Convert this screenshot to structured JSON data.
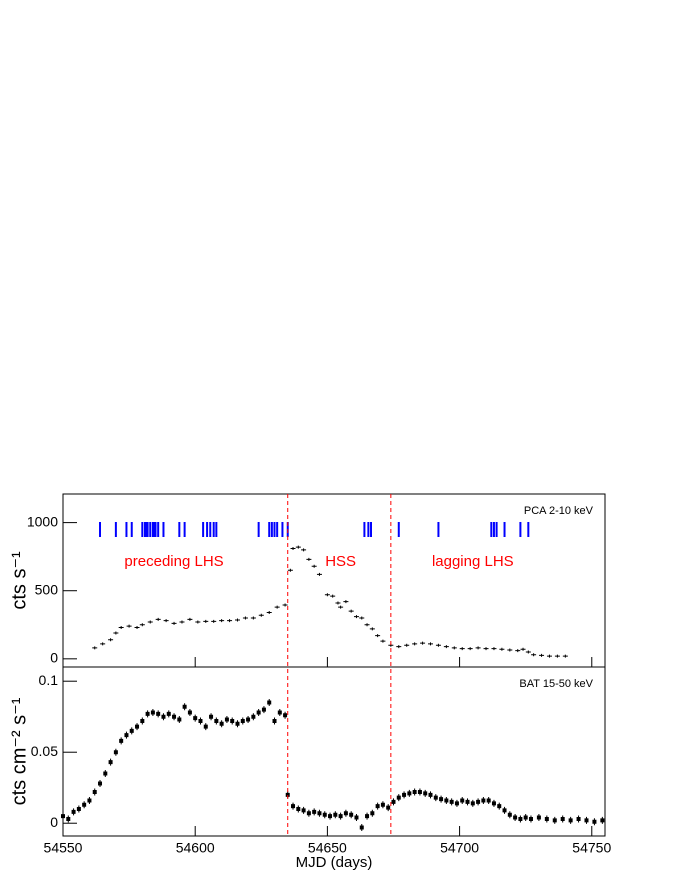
{
  "chart_data": [
    {
      "type": "scatter",
      "annotation": "PCA 2-10 keV",
      "ylabel": "cts s⁻¹",
      "color": "#000000",
      "rug_color": "#0000ff",
      "divider_color": "#ff0000",
      "regions": [
        {
          "label": "preceding LHS",
          "x": 54592
        },
        {
          "label": "HSS",
          "x": 54655
        },
        {
          "label": "lagging LHS",
          "x": 54705
        }
      ],
      "dividers": [
        54635,
        54674
      ],
      "obs_times": [
        54564,
        54570,
        54574,
        54576,
        54580,
        54581,
        54581.4,
        54582,
        54583,
        54584,
        54584.5,
        54585,
        54586,
        54588,
        54594,
        54596,
        54603,
        54604.5,
        54605.7,
        54607,
        54608,
        54624,
        54628,
        54629,
        54630,
        54631,
        54633,
        54635,
        54664,
        54665.5,
        54666.5,
        54677,
        54692,
        54712,
        54713,
        54714,
        54717,
        54723,
        54726
      ],
      "xlim": [
        54550,
        54755
      ],
      "xticks": [
        54550,
        54600,
        54650,
        54700,
        54750
      ],
      "ylim": [
        -60,
        1210
      ],
      "yticks": [
        0,
        500,
        1000
      ],
      "x": [
        54562,
        54565,
        54568,
        54570,
        54572,
        54575,
        54578,
        54580,
        54583,
        54586,
        54589,
        54592,
        54595,
        54598,
        54601,
        54604,
        54607,
        54610,
        54613,
        54616,
        54619,
        54622,
        54625,
        54628,
        54631,
        54634,
        54636,
        54637,
        54639,
        54641,
        54643,
        54645,
        54647,
        54650,
        54652,
        54654,
        54655,
        54657,
        54659,
        54661,
        54663,
        54665,
        54667,
        54669,
        54671,
        54674,
        54677,
        54680,
        54683,
        54686,
        54689,
        54692,
        54695,
        54698,
        54701,
        54704,
        54707,
        54710,
        54713,
        54716,
        54719,
        54722,
        54724,
        54726,
        54728,
        54731,
        54734,
        54737,
        54740
      ],
      "values": [
        80,
        110,
        140,
        190,
        230,
        240,
        230,
        250,
        270,
        290,
        280,
        260,
        270,
        290,
        270,
        275,
        275,
        280,
        280,
        285,
        300,
        300,
        320,
        340,
        380,
        395,
        650,
        810,
        820,
        800,
        730,
        680,
        620,
        470,
        460,
        410,
        380,
        420,
        350,
        310,
        300,
        250,
        220,
        170,
        130,
        100,
        90,
        100,
        110,
        115,
        110,
        100,
        90,
        80,
        75,
        75,
        80,
        75,
        75,
        70,
        65,
        60,
        70,
        50,
        30,
        25,
        20,
        20,
        20
      ]
    },
    {
      "type": "scatter",
      "annotation": "BAT 15-50 keV",
      "ylabel": "cts cm⁻² s⁻¹",
      "xlabel": "MJD (days)",
      "color": "#000000",
      "xlim": [
        54550,
        54755
      ],
      "xticks": [
        54550,
        54600,
        54650,
        54700,
        54750
      ],
      "ylim": [
        -0.009,
        0.11
      ],
      "yticks": [
        0,
        0.05,
        0.1
      ],
      "x": [
        54550,
        54552,
        54554,
        54556,
        54558,
        54560,
        54562,
        54564,
        54566,
        54568,
        54570,
        54572,
        54574,
        54576,
        54578,
        54580,
        54582,
        54584,
        54586,
        54588,
        54590,
        54592,
        54594,
        54596,
        54598,
        54600,
        54602,
        54604,
        54606,
        54608,
        54610,
        54612,
        54614,
        54616,
        54618,
        54620,
        54622,
        54624,
        54626,
        54628,
        54630,
        54632,
        54634,
        54635,
        54637,
        54639,
        54641,
        54643,
        54645,
        54647,
        54649,
        54651,
        54653,
        54655,
        54657,
        54659,
        54661,
        54663,
        54665,
        54667,
        54669,
        54671,
        54673,
        54675,
        54677,
        54679,
        54681,
        54683,
        54685,
        54687,
        54689,
        54691,
        54693,
        54695,
        54697,
        54699,
        54701,
        54703,
        54705,
        54707,
        54709,
        54711,
        54713,
        54715,
        54717,
        54719,
        54721,
        54723,
        54725,
        54727,
        54730,
        54733,
        54736,
        54739,
        54742,
        54745,
        54748,
        54751,
        54754
      ],
      "values": [
        0.005,
        0.003,
        0.008,
        0.01,
        0.013,
        0.016,
        0.022,
        0.028,
        0.035,
        0.043,
        0.05,
        0.058,
        0.062,
        0.065,
        0.068,
        0.072,
        0.077,
        0.078,
        0.077,
        0.075,
        0.077,
        0.075,
        0.073,
        0.082,
        0.078,
        0.074,
        0.072,
        0.068,
        0.075,
        0.072,
        0.07,
        0.073,
        0.072,
        0.07,
        0.072,
        0.073,
        0.075,
        0.078,
        0.08,
        0.085,
        0.072,
        0.078,
        0.076,
        0.02,
        0.012,
        0.01,
        0.009,
        0.007,
        0.008,
        0.007,
        0.006,
        0.005,
        0.006,
        0.005,
        0.007,
        0.006,
        0.004,
        -0.003,
        0.005,
        0.007,
        0.012,
        0.013,
        0.011,
        0.015,
        0.018,
        0.02,
        0.021,
        0.022,
        0.022,
        0.021,
        0.02,
        0.018,
        0.017,
        0.016,
        0.015,
        0.014,
        0.016,
        0.015,
        0.014,
        0.015,
        0.016,
        0.016,
        0.014,
        0.012,
        0.009,
        0.006,
        0.004,
        0.003,
        0.004,
        0.003,
        0.004,
        0.003,
        0.002,
        0.003,
        0.002,
        0.003,
        0.002,
        0.001,
        0.002
      ]
    }
  ]
}
